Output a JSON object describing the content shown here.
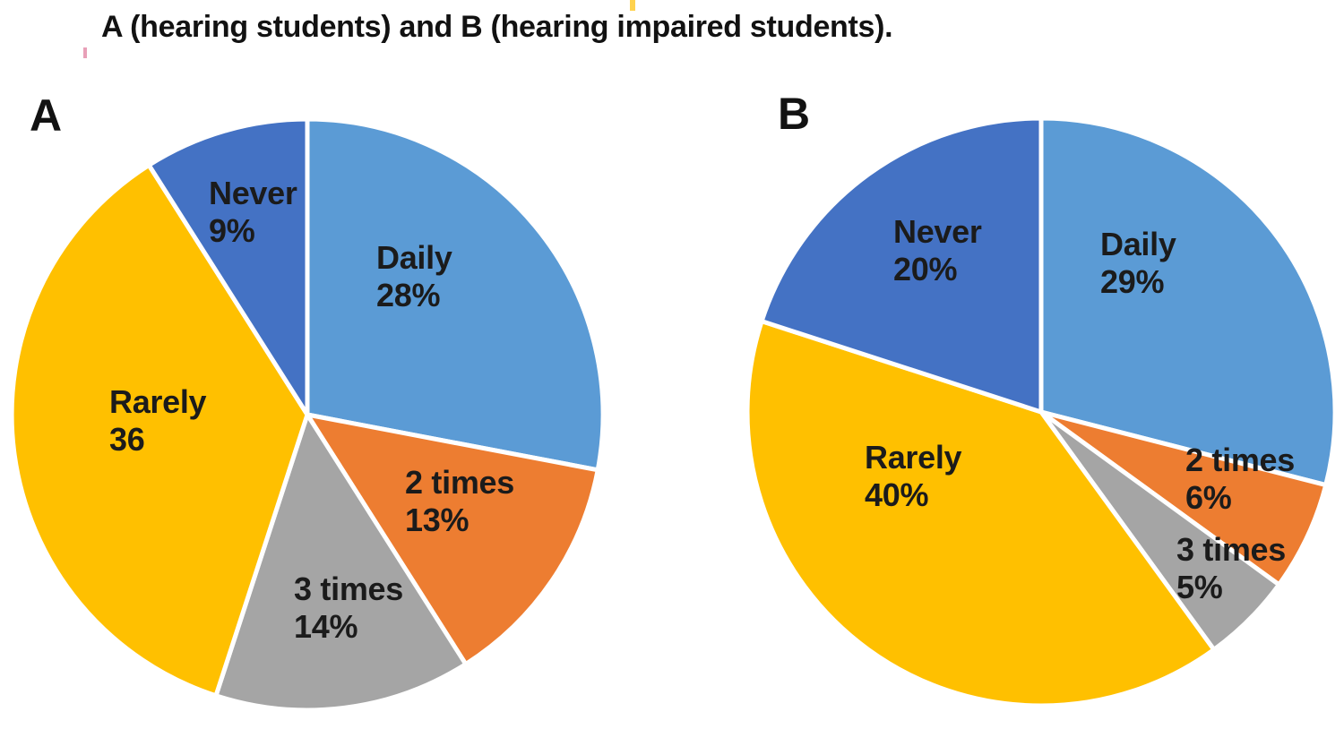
{
  "title": "A (hearing students) and B (hearing impaired students).",
  "chart_data": [
    {
      "type": "pie",
      "letter": "A",
      "group": "hearing students",
      "start_angle_deg": 0,
      "direction": "clockwise",
      "slices": [
        {
          "label": "Daily",
          "value": 28,
          "display": "28%",
          "color": "#5B9BD5"
        },
        {
          "label": "2 times",
          "value": 13,
          "display": "13%",
          "color": "#ED7D31"
        },
        {
          "label": "3 times",
          "value": 14,
          "display": "14%",
          "color": "#A5A5A5"
        },
        {
          "label": "Rarely",
          "value": 36,
          "display": "36",
          "color": "#FFC000"
        },
        {
          "label": "Never",
          "value": 9,
          "display": "9%",
          "color": "#4472C4"
        }
      ]
    },
    {
      "type": "pie",
      "letter": "B",
      "group": "hearing impaired students",
      "start_angle_deg": 0,
      "direction": "clockwise",
      "slices": [
        {
          "label": "Daily",
          "value": 29,
          "display": "29%",
          "color": "#5B9BD5"
        },
        {
          "label": "2 times",
          "value": 6,
          "display": "6%",
          "color": "#ED7D31"
        },
        {
          "label": "3 times",
          "value": 5,
          "display": "5%",
          "color": "#A5A5A5"
        },
        {
          "label": "Rarely",
          "value": 40,
          "display": "40%",
          "color": "#FFC000"
        },
        {
          "label": "Never",
          "value": 20,
          "display": "20%",
          "color": "#4472C4"
        }
      ]
    }
  ],
  "colors": {
    "daily": "#5B9BD5",
    "two_times": "#ED7D31",
    "three_times": "#A5A5A5",
    "rarely": "#FFC000",
    "never": "#4472C4",
    "separator": "#FFFFFF",
    "text": "#1b1b1b"
  }
}
